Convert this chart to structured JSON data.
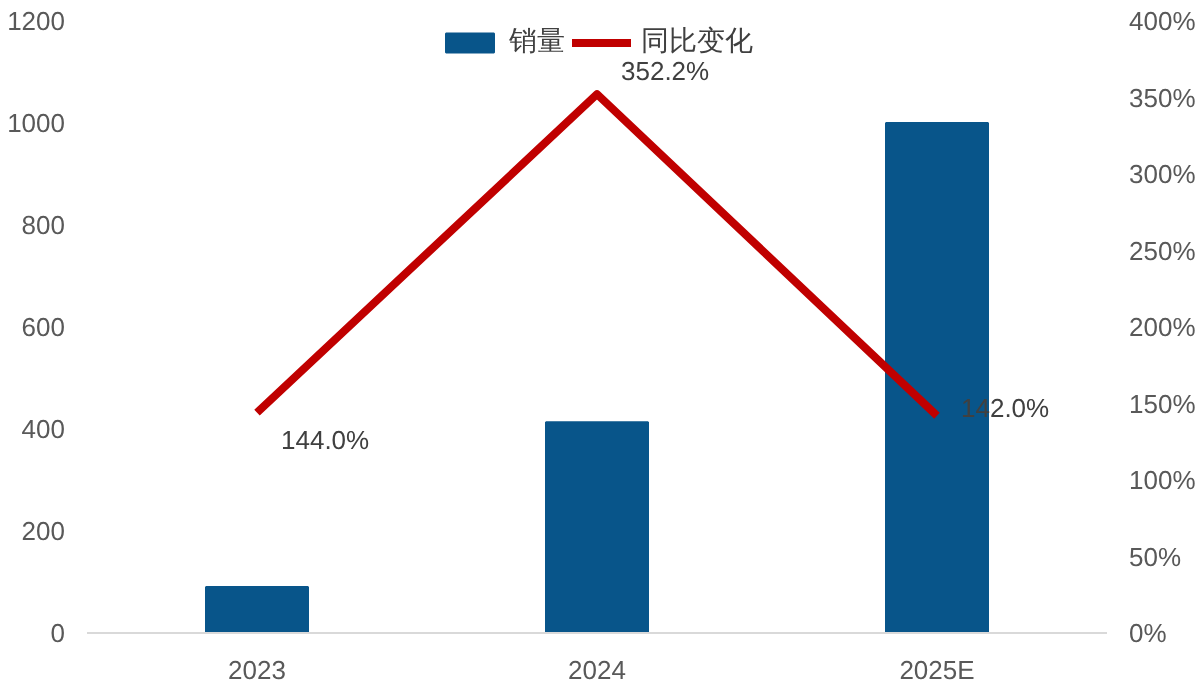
{
  "chart_data": {
    "type": "bar",
    "categories": [
      "2023",
      "2024",
      "2025E"
    ],
    "series": [
      {
        "name": "销量",
        "color": "#08558a",
        "values": [
          90,
          413,
          1000
        ]
      },
      {
        "name": "同比变化",
        "type": "line",
        "axis": "y2",
        "color": "#c00000",
        "values": [
          144.0,
          352.2,
          142.0
        ],
        "value_labels": [
          "144.0%",
          "352.2%",
          "142.0%"
        ]
      }
    ],
    "ylim": [
      0,
      1200
    ],
    "yticks": [
      0,
      200,
      400,
      600,
      800,
      1000,
      1200
    ],
    "y2lim": [
      0,
      400
    ],
    "y2ticks": [
      {
        "value": 0,
        "label": "0%"
      },
      {
        "value": 50,
        "label": "50%"
      },
      {
        "value": 100,
        "label": "100%"
      },
      {
        "value": 150,
        "label": "150%"
      },
      {
        "value": 200,
        "label": "200%"
      },
      {
        "value": 250,
        "label": "250%"
      },
      {
        "value": 300,
        "label": "300%"
      },
      {
        "value": 350,
        "label": "350%"
      },
      {
        "value": 400,
        "label": "400%"
      }
    ],
    "legend": "top",
    "grid": false
  }
}
